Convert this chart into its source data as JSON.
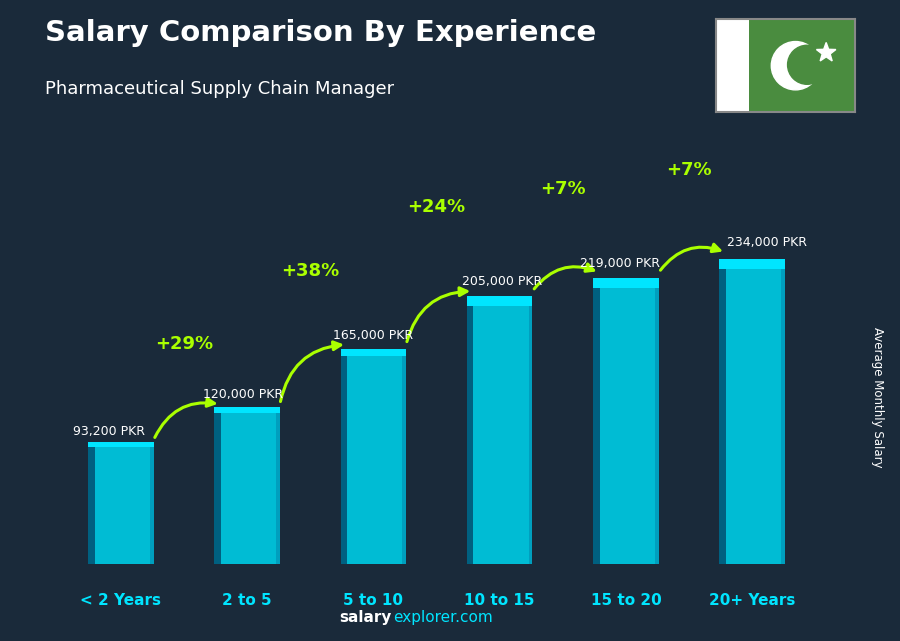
{
  "title": "Salary Comparison By Experience",
  "subtitle": "Pharmaceutical Supply Chain Manager",
  "categories": [
    "< 2 Years",
    "2 to 5",
    "5 to 10",
    "10 to 15",
    "15 to 20",
    "20+ Years"
  ],
  "values": [
    93200,
    120000,
    165000,
    205000,
    219000,
    234000
  ],
  "labels": [
    "93,200 PKR",
    "120,000 PKR",
    "165,000 PKR",
    "205,000 PKR",
    "219,000 PKR",
    "234,000 PKR"
  ],
  "pct_labels": [
    "+29%",
    "+38%",
    "+24%",
    "+7%",
    "+7%"
  ],
  "bar_color_main": "#00bcd4",
  "bar_color_dark": "#006080",
  "bar_color_light": "#40e0f0",
  "bar_color_top": "#00e5ff",
  "bg_color": "#1a2a3a",
  "title_color": "#ffffff",
  "subtitle_color": "#ffffff",
  "label_color": "#ffffff",
  "pct_color": "#aaff00",
  "cat_color": "#00e5ff",
  "footer_salary_color": "#ffffff",
  "footer_explorer_color": "#00e5ff",
  "ylabel": "Average Monthly Salary",
  "ylim": [
    0,
    270000
  ],
  "bar_width": 0.52,
  "flag_green": "#4a8c3f"
}
